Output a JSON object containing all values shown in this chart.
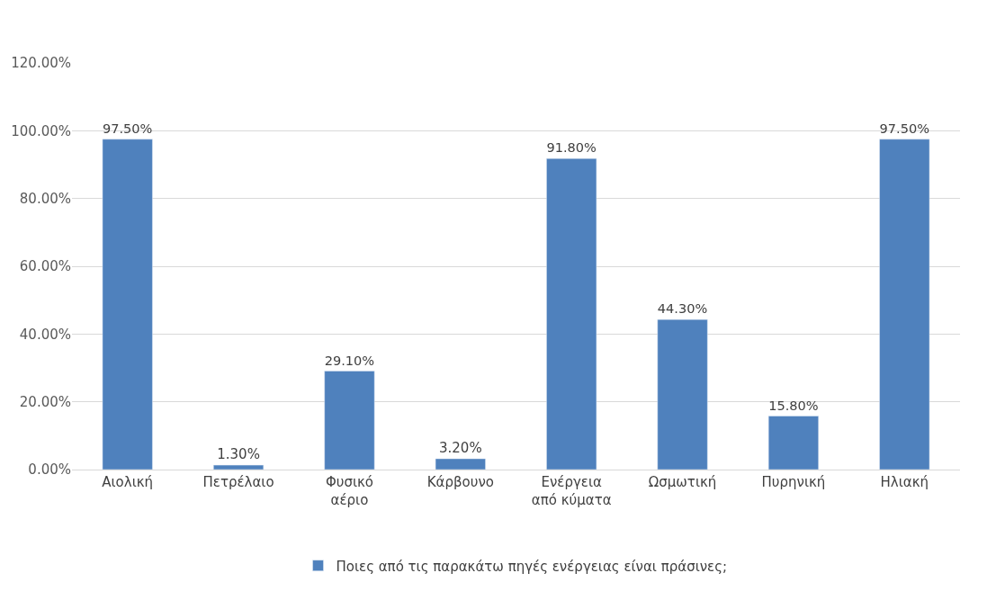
{
  "chart_data": {
    "type": "bar",
    "categories": [
      "Αιολική",
      "Πετρέλαιο",
      "Φυσικό αέριο",
      "Κάρβουνο",
      "Ενέργεια από κύματα",
      "Ωσμωτική",
      "Πυρηνική",
      "Ηλιακή"
    ],
    "series": [
      {
        "name": "Ποιες από τις παρακάτω πηγές ενέργειας είναι πράσινες;",
        "color": "#4f81bd",
        "values": [
          97.5,
          1.3,
          29.1,
          3.2,
          91.8,
          44.3,
          15.8,
          97.5
        ],
        "value_labels": [
          "97.50%",
          "1.30%",
          "29.10%",
          "3.20%",
          "91.80%",
          "44.30%",
          "15.80%",
          "97.50%"
        ]
      }
    ],
    "ylim": [
      0,
      120
    ],
    "yticks": [
      {
        "value": 0,
        "label": "0.00%"
      },
      {
        "value": 20,
        "label": "20.00%"
      },
      {
        "value": 40,
        "label": "40.00%"
      },
      {
        "value": 60,
        "label": "60.00%"
      },
      {
        "value": 80,
        "label": "80.00%"
      },
      {
        "value": 100,
        "label": "100.00%"
      },
      {
        "value": 120,
        "label": "120.00%"
      }
    ],
    "grid": "y",
    "legend": "bottom"
  }
}
